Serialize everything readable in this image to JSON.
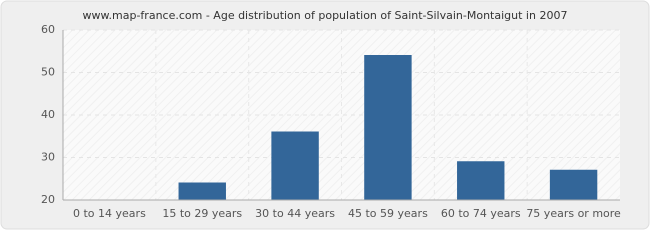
{
  "chart_data": {
    "type": "bar",
    "title": "www.map-france.com - Age distribution of population of Saint-Silvain-Montaigut in 2007",
    "categories": [
      "0 to 14 years",
      "15 to 29 years",
      "30 to 44 years",
      "45 to 59 years",
      "60 to 74 years",
      "75 years or more"
    ],
    "values": [
      20,
      24,
      36,
      54,
      29,
      27
    ],
    "color": "#336699",
    "ylim": [
      20,
      60
    ],
    "yticks": [
      20,
      30,
      40,
      50,
      60
    ],
    "grid": true
  }
}
